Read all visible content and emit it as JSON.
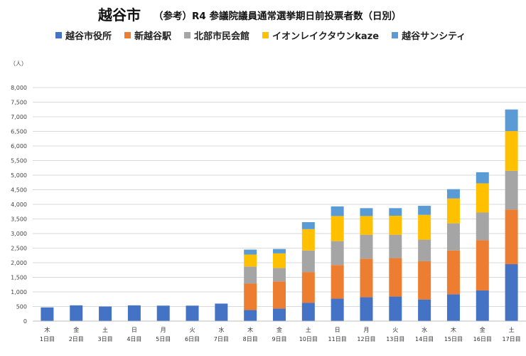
{
  "chart_data": {
    "type": "bar",
    "stacked": true,
    "title_main": "越谷市",
    "title_sub": "（参考）R4 参議院議員通常選挙期日前投票者数（日別）",
    "ylabel": "（人）",
    "ylim": [
      0,
      8000
    ],
    "yticks": [
      0,
      500,
      1000,
      1500,
      2000,
      2500,
      3000,
      3500,
      4000,
      4500,
      5000,
      5500,
      6000,
      6500,
      7000,
      7500,
      8000
    ],
    "ytick_labels": [
      "0",
      "500",
      "1,000",
      "1,500",
      "2,000",
      "2,500",
      "3,000",
      "3,500",
      "4,000",
      "4,500",
      "5,000",
      "5,500",
      "6,000",
      "6,500",
      "7,000",
      "7,500",
      "8,000"
    ],
    "grid": true,
    "legend_position": "top",
    "categories": [
      {
        "weekday": "木",
        "day": "1日目"
      },
      {
        "weekday": "金",
        "day": "2日目"
      },
      {
        "weekday": "土",
        "day": "3日目"
      },
      {
        "weekday": "日",
        "day": "4日目"
      },
      {
        "weekday": "月",
        "day": "5日目"
      },
      {
        "weekday": "火",
        "day": "6日目"
      },
      {
        "weekday": "水",
        "day": "7日目"
      },
      {
        "weekday": "木",
        "day": "8日目"
      },
      {
        "weekday": "金",
        "day": "9日目"
      },
      {
        "weekday": "土",
        "day": "10日目"
      },
      {
        "weekday": "日",
        "day": "11日目"
      },
      {
        "weekday": "月",
        "day": "12日目"
      },
      {
        "weekday": "火",
        "day": "13日目"
      },
      {
        "weekday": "水",
        "day": "14日目"
      },
      {
        "weekday": "木",
        "day": "15日目"
      },
      {
        "weekday": "金",
        "day": "16日目"
      },
      {
        "weekday": "土",
        "day": "17日目"
      }
    ],
    "series": [
      {
        "name": "越谷市役所",
        "color": "#4472C4",
        "values": [
          470,
          540,
          500,
          540,
          530,
          530,
          600,
          380,
          430,
          630,
          770,
          820,
          840,
          740,
          920,
          1050,
          1950
        ]
      },
      {
        "name": "新越谷駅",
        "color": "#ED7D31",
        "values": [
          0,
          0,
          0,
          0,
          0,
          0,
          0,
          910,
          930,
          1050,
          1150,
          1320,
          1320,
          1310,
          1500,
          1720,
          1870
        ]
      },
      {
        "name": "北部市民会館",
        "color": "#A5A5A5",
        "values": [
          0,
          0,
          0,
          0,
          0,
          0,
          0,
          580,
          460,
          740,
          820,
          820,
          800,
          740,
          930,
          950,
          1330
        ]
      },
      {
        "name": "イオンレイクタウンkaze",
        "color": "#FFC000",
        "values": [
          0,
          0,
          0,
          0,
          0,
          0,
          0,
          410,
          500,
          730,
          860,
          640,
          650,
          850,
          850,
          1000,
          1360
        ]
      },
      {
        "name": "越谷サンシティ",
        "color": "#5B9BD5",
        "values": [
          0,
          0,
          0,
          0,
          0,
          0,
          0,
          170,
          150,
          240,
          330,
          270,
          260,
          310,
          320,
          380,
          740
        ]
      }
    ]
  }
}
